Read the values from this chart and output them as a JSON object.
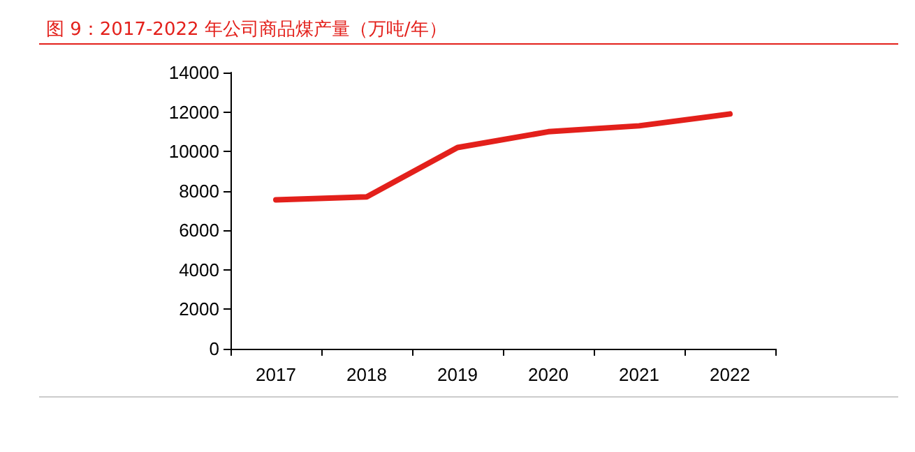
{
  "chart_data": {
    "type": "line",
    "title": "图 9：2017-2022 年公司商品煤产量（万吨/年）",
    "categories": [
      "2017",
      "2018",
      "2019",
      "2020",
      "2021",
      "2022"
    ],
    "series": [
      {
        "color": "#e3201b",
        "values": [
          7550,
          7700,
          10200,
          11000,
          11300,
          11900
        ]
      }
    ],
    "ylim": [
      0,
      14000
    ],
    "yticks": [
      0,
      2000,
      4000,
      6000,
      8000,
      10000,
      12000,
      14000
    ],
    "grid": false,
    "marker": "none",
    "line_style": "solid"
  }
}
